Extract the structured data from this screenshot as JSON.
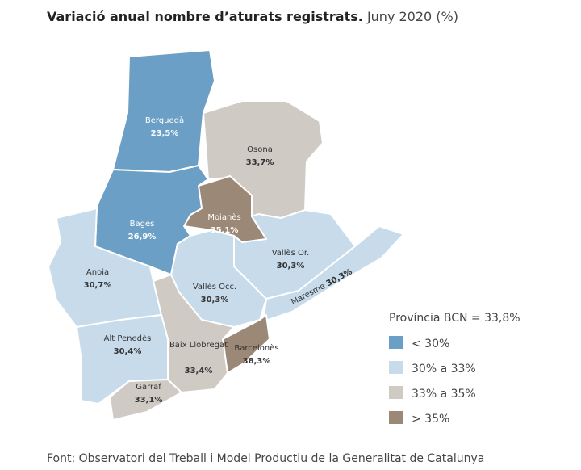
{
  "header": {
    "title": "Variació anual nombre d’aturats registrats.",
    "subtitle": "Juny 2020 (%)"
  },
  "regions": [
    {
      "name": "Berguedà",
      "value": "23,5%",
      "color": "#6b9fc5"
    },
    {
      "name": "Osona",
      "value": "33,7%",
      "color": "#d0cac4"
    },
    {
      "name": "Moianès",
      "value": "35,1%",
      "color": "#9c8876"
    },
    {
      "name": "Bages",
      "value": "26,9%",
      "color": "#6b9fc5"
    },
    {
      "name": "Anoia",
      "value": "30,7%",
      "color": "#c7dbeb"
    },
    {
      "name": "Vallès Occ.",
      "value": "30,3%",
      "color": "#c7dbeb"
    },
    {
      "name": "Vallès Or.",
      "value": "30,3%",
      "color": "#c7dbeb"
    },
    {
      "name": "Maresme",
      "value": "30,3%",
      "color": "#c7dbeb"
    },
    {
      "name": "Barcelonès",
      "value": "38,3%",
      "color": "#9c8876"
    },
    {
      "name": "Baix Llobregat",
      "value": "33,4%",
      "color": "#d0cac4"
    },
    {
      "name": "Alt Penedès",
      "value": "30,4%",
      "color": "#c7dbeb"
    },
    {
      "name": "Garraf",
      "value": "33,1%",
      "color": "#d0cac4"
    }
  ],
  "legend": {
    "title": "Província BCN = 33,8%",
    "items": [
      {
        "label": "< 30%",
        "color": "#6b9fc5"
      },
      {
        "label": "30% a 33%",
        "color": "#c7dbeb"
      },
      {
        "label": "33% a 35%",
        "color": "#d0cac4"
      },
      {
        "label": "> 35%",
        "color": "#9c8876"
      }
    ]
  },
  "source": "Font: Observatori del Treball i Model Productiu de la Generalitat de Catalunya"
}
